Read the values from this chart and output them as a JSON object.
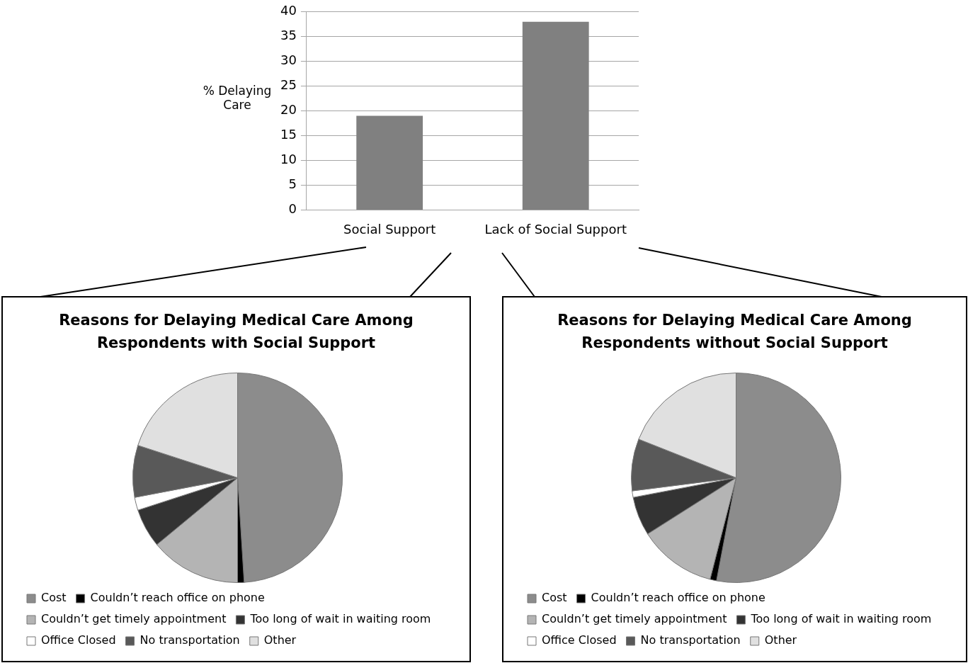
{
  "chart_data": [
    {
      "type": "bar",
      "ylabel": "% Delaying Care",
      "categories": [
        "Social Support",
        "Lack of Social Support"
      ],
      "values": [
        19,
        38
      ],
      "color": "#808080",
      "ylim": [
        0,
        40
      ],
      "yticks": [
        0,
        5,
        10,
        15,
        20,
        25,
        30,
        35,
        40
      ],
      "grid": "y",
      "legend": false
    },
    {
      "type": "pie",
      "title": "Reasons for Delaying Medical Care Among Respondents with Social Support",
      "categories": [
        "Cost",
        "Couldn’t reach office on phone",
        "Couldn’t get timely appointment",
        "Too long of wait in waiting room",
        "Office Closed",
        "No transportation",
        "Other"
      ],
      "values": [
        49,
        1,
        14,
        6,
        2,
        8,
        20
      ],
      "colors": [
        "#8c8c8c",
        "#000000",
        "#b4b4b4",
        "#333333",
        "#ffffff",
        "#595959",
        "#e0e0e0"
      ],
      "legend": "bottom"
    },
    {
      "type": "pie",
      "title": "Reasons for Delaying Medical Care Among Respondents without Social Support",
      "categories": [
        "Cost",
        "Couldn’t reach office on phone",
        "Couldn’t get timely appointment",
        "Too long of wait in waiting room",
        "Office Closed",
        "No transportation",
        "Other"
      ],
      "values": [
        53,
        1,
        12,
        6,
        1,
        8,
        19
      ],
      "colors": [
        "#8c8c8c",
        "#000000",
        "#b4b4b4",
        "#333333",
        "#ffffff",
        "#595959",
        "#e0e0e0"
      ],
      "legend": "bottom"
    }
  ]
}
